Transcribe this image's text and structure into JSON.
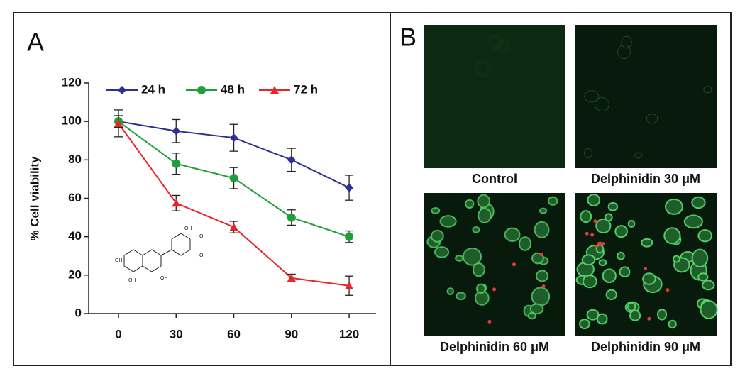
{
  "chart_data": {
    "type": "line",
    "panel_label": "A",
    "y_label": "% Cell viability",
    "x": [
      0,
      30,
      60,
      90,
      120
    ],
    "xlim": [
      -15.5,
      134
    ],
    "xticks": [
      0,
      30,
      60,
      90,
      120
    ],
    "ylim": [
      0,
      120
    ],
    "yticks": [
      0,
      20,
      40,
      60,
      80,
      100,
      120
    ],
    "legend": "top",
    "series": [
      {
        "name": "24 h",
        "color": "#2e3192",
        "marker": "diamond",
        "values": [
          100,
          95,
          91.5,
          80,
          65.5
        ],
        "errors": [
          3,
          6,
          7,
          6,
          6.5
        ]
      },
      {
        "name": "48 h",
        "color": "#1f9e3a",
        "marker": "circle",
        "values": [
          100,
          78,
          70.5,
          50,
          40
        ],
        "errors": [
          3,
          5.5,
          5.5,
          4,
          3
        ]
      },
      {
        "name": "72 h",
        "color": "#e8262a",
        "marker": "triangle",
        "values": [
          99,
          57.5,
          45,
          18.5,
          14.5
        ],
        "errors": [
          7,
          4,
          3,
          2,
          5
        ]
      }
    ],
    "structure_labels": [
      "OH",
      "OH",
      "OH",
      "OH",
      "OH",
      "OH"
    ]
  },
  "panel_b": {
    "label": "B",
    "images": [
      {
        "caption": "Control"
      },
      {
        "caption": "Delphinidin 30 μM"
      },
      {
        "caption": "Delphinidin 60 μM"
      },
      {
        "caption": "Delphinidin 90 μM"
      }
    ]
  }
}
